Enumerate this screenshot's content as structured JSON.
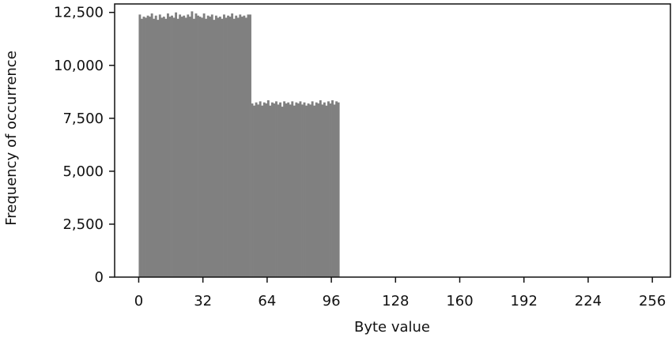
{
  "chart_data": {
    "type": "bar",
    "xlabel": "Byte value",
    "ylabel": "Frequency of occurrence",
    "xlim": [
      -12,
      265
    ],
    "ylim": [
      0,
      12900
    ],
    "x_ticks": [
      0,
      32,
      64,
      96,
      128,
      160,
      192,
      224,
      256
    ],
    "x_tick_labels": [
      "0",
      "32",
      "64",
      "96",
      "128",
      "160",
      "192",
      "224",
      "256"
    ],
    "y_ticks": [
      0,
      2500,
      5000,
      7500,
      10000,
      12500
    ],
    "y_tick_labels": [
      "0",
      "2,500",
      "5,000",
      "7,500",
      "10,000",
      "12,500"
    ],
    "grid": false,
    "bar_color": "#808080",
    "x": [
      0,
      1,
      2,
      3,
      4,
      5,
      6,
      7,
      8,
      9,
      10,
      11,
      12,
      13,
      14,
      15,
      16,
      17,
      18,
      19,
      20,
      21,
      22,
      23,
      24,
      25,
      26,
      27,
      28,
      29,
      30,
      31,
      32,
      33,
      34,
      35,
      36,
      37,
      38,
      39,
      40,
      41,
      42,
      43,
      44,
      45,
      46,
      47,
      48,
      49,
      50,
      51,
      52,
      53,
      54,
      55,
      56,
      57,
      58,
      59,
      60,
      61,
      62,
      63,
      64,
      65,
      66,
      67,
      68,
      69,
      70,
      71,
      72,
      73,
      74,
      75,
      76,
      77,
      78,
      79,
      80,
      81,
      82,
      83,
      84,
      85,
      86,
      87,
      88,
      89,
      90,
      91,
      92,
      93,
      94,
      95,
      96,
      97,
      98,
      99
    ],
    "values": [
      12400,
      12200,
      12300,
      12250,
      12350,
      12300,
      12450,
      12200,
      12350,
      12150,
      12400,
      12250,
      12300,
      12200,
      12450,
      12300,
      12350,
      12250,
      12500,
      12200,
      12400,
      12300,
      12350,
      12250,
      12400,
      12300,
      12550,
      12200,
      12450,
      12350,
      12300,
      12250,
      12450,
      12200,
      12350,
      12300,
      12400,
      12150,
      12350,
      12250,
      12300,
      12200,
      12400,
      12250,
      12350,
      12300,
      12450,
      12200,
      12350,
      12250,
      12400,
      12300,
      12350,
      12250,
      12400,
      12400,
      8200,
      8100,
      8250,
      8150,
      8300,
      8100,
      8250,
      8200,
      8350,
      8100,
      8250,
      8200,
      8300,
      8150,
      8250,
      8050,
      8300,
      8200,
      8250,
      8150,
      8300,
      8100,
      8250,
      8200,
      8300,
      8150,
      8250,
      8100,
      8200,
      8150,
      8300,
      8100,
      8250,
      8200,
      8350,
      8150,
      8250,
      8100,
      8300,
      8200,
      8350,
      8150,
      8300,
      8250
    ]
  }
}
